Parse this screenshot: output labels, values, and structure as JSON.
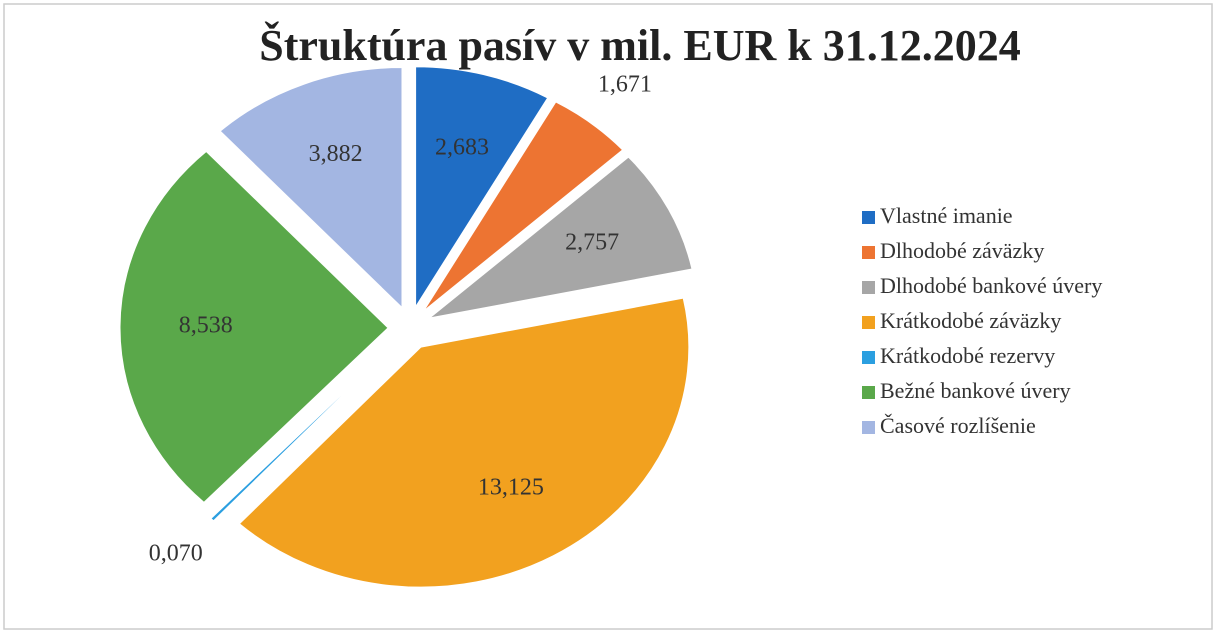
{
  "chart_data": {
    "type": "pie",
    "title": "Štruktúra pasív v mil. EUR k 31.12.2024",
    "categories": [
      "Vlastné imanie",
      "Dlhodobé záväzky",
      "Dlhodobé bankové úvery",
      "Krátkodobé záväzky",
      "Krátkodobé rezervy",
      "Bežné bankové úvery",
      "Časové rozlíšenie"
    ],
    "values": [
      2.683,
      1.671,
      2.757,
      13.125,
      0.07,
      8.538,
      3.882
    ],
    "value_labels": [
      "2,683",
      "1,671",
      "2,757",
      "13,125",
      "0,070",
      "8,538",
      "3,882"
    ],
    "colors": [
      "#1f6dc4",
      "#ed7432",
      "#a6a6a6",
      "#f2a11f",
      "#2b9fe0",
      "#5aa84a",
      "#a3b6e2"
    ],
    "legend": "right"
  }
}
